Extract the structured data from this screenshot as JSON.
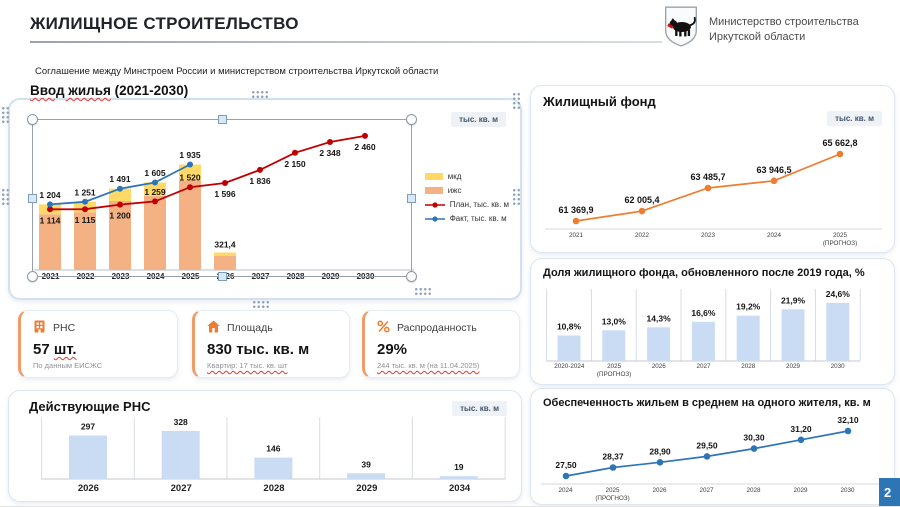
{
  "header": {
    "title": "ЖИЛИЩНОЕ СТРОИТЕЛЬСТВО",
    "subtitle": "Соглашение между Минстроем России и министерством строительства Иркутской области",
    "ministry_line1": "Министерство строительства",
    "ministry_line2": "Иркутской области"
  },
  "page_number": "2",
  "kpi_cards": [
    {
      "icon": "building-icon",
      "label": "РНС",
      "value_num": "57",
      "value_unit": "шт.",
      "note": "По данным ЕИСЖС"
    },
    {
      "icon": "house-icon",
      "label": "Площадь",
      "value_num": "830",
      "value_unit": "тыс. кв. м",
      "note": "Квартир: 17 тыс. кв. шт"
    },
    {
      "icon": "percent-icon",
      "label": "Распроданность",
      "value_num": "29%",
      "value_unit": "",
      "note": "244 тыс. кв. м (на 11.04.2025)"
    }
  ],
  "chart_data": [
    {
      "id": "housing_commissioning",
      "type": "combo",
      "title_main": "Ввод жилья",
      "title_suffix": " (2021-2030)",
      "unit_badge": "тыс. кв. м",
      "categories": [
        "2021",
        "2022",
        "2023",
        "2024",
        "2025",
        "2026",
        "2027",
        "2028",
        "2029",
        "2030"
      ],
      "bar_series": [
        {
          "name": "мкд",
          "color": "#FFD966",
          "values_estimated": [
            180,
            190,
            225,
            245,
            290,
            64
          ]
        },
        {
          "name": "ижс",
          "color": "#F4B183",
          "values_estimated": [
            1024,
            1061,
            1266,
            1360,
            1645,
            257.4
          ]
        }
      ],
      "bar_totals": [
        1204,
        1251,
        1491,
        1605,
        1935,
        321.4
      ],
      "bar_total_label_2026": "321,4",
      "bar_split_note": "segment split not labeled on slide; estimated visually",
      "line_series": [
        {
          "name": "План, тыс. кв. м",
          "color": "#C00000",
          "values": [
            1114,
            1115,
            1200,
            1259,
            1520,
            1596,
            1836,
            2150,
            2348,
            2460
          ],
          "labels": [
            "1 114",
            "1 115",
            "1 200",
            "1 259",
            "1 520",
            "1 596",
            "1 836",
            "2 150",
            "2 348",
            "2 460"
          ],
          "label_below": [
            true,
            true,
            true,
            false,
            false,
            true,
            true,
            true,
            true,
            true
          ]
        },
        {
          "name": "Факт, тыс. кв. м",
          "color": "#2E75B6",
          "values": [
            1204,
            1251,
            1491,
            1605,
            1935
          ],
          "labels": [
            "1 204",
            "1 251",
            "1 491",
            "1 605",
            "1 935"
          ],
          "label_below": [
            false,
            false,
            false,
            false,
            false
          ]
        }
      ],
      "legend": [
        "мкд",
        "ижс",
        "План, тыс. кв. м",
        "Факт, тыс. кв. м"
      ]
    },
    {
      "id": "housing_stock",
      "type": "line",
      "title": "Жилищный фонд",
      "unit_badge": "тыс. кв. м",
      "categories": [
        "2021",
        "2022",
        "2023",
        "2024",
        "2025\n(ПРОГНОЗ)"
      ],
      "values": [
        61369.9,
        62005.4,
        63485.7,
        63946.5,
        65662.8
      ],
      "labels": [
        "61 369,9",
        "62 005,4",
        "63 485,7",
        "63 946,5",
        "65 662,8"
      ],
      "color": "#ED7D31",
      "ylim": [
        61000,
        66400
      ]
    },
    {
      "id": "renewed_share",
      "type": "bar",
      "title": "Доля жилищного фонда, обновленного после 2019 года, %",
      "categories": [
        "2020-2024",
        "2025\n(ПРОГНОЗ)",
        "2026",
        "2027",
        "2028",
        "2029",
        "2030"
      ],
      "values": [
        10.8,
        13.0,
        14.3,
        16.6,
        19.2,
        21.9,
        24.6
      ],
      "labels": [
        "10,8%",
        "13,0%",
        "14,3%",
        "16,6%",
        "19,2%",
        "21,9%",
        "24,6%"
      ],
      "color": "#C9DCF3",
      "ylim": [
        0,
        27
      ]
    },
    {
      "id": "per_capita_provision",
      "type": "line",
      "title": "Обеспеченность жильем в среднем на одного жителя, кв. м",
      "categories": [
        "2024",
        "2025\n(ПРОГНОЗ)",
        "2026",
        "2027",
        "2028",
        "2029",
        "2030"
      ],
      "values": [
        27.5,
        28.37,
        28.9,
        29.5,
        30.3,
        31.2,
        32.1
      ],
      "labels": [
        "27,50",
        "28,37",
        "28,90",
        "29,50",
        "30,30",
        "31,20",
        "32,10"
      ],
      "color": "#2E75B6",
      "ylim": [
        27,
        33
      ]
    },
    {
      "id": "active_permits",
      "type": "bar",
      "title": "Действующие РНС",
      "unit_badge": "тыс. кв. м",
      "categories": [
        "2026",
        "2027",
        "2028",
        "2029",
        "2034"
      ],
      "values": [
        297,
        328,
        146,
        39,
        19
      ],
      "labels": [
        "297",
        "328",
        "146",
        "39",
        "19"
      ],
      "color": "#C9DCF3",
      "ylim": [
        0,
        360
      ]
    }
  ]
}
